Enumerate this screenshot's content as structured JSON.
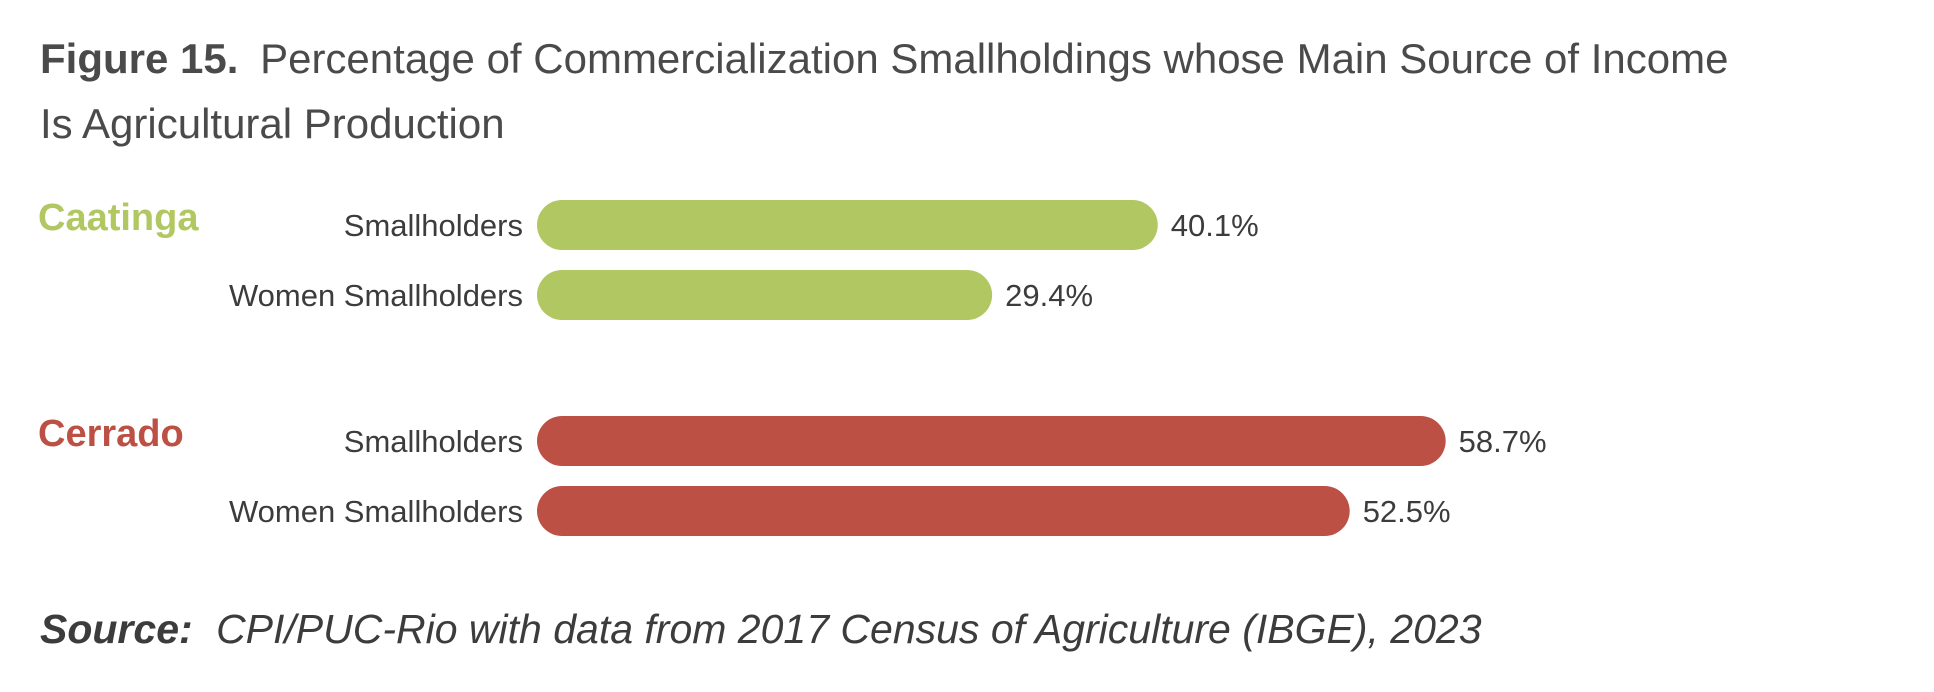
{
  "title": {
    "prefix": "Figure 15.",
    "line1": "Percentage of Commercialization Smallholdings whose Main Source of Income",
    "line2": "Is Agricultural Production"
  },
  "source": {
    "prefix": "Source:",
    "text": "CPI/PUC-Rio with data from 2017 Census of Agriculture (IBGE), 2023"
  },
  "chart_data": {
    "type": "bar",
    "orientation": "horizontal",
    "groups": [
      {
        "name": "Caatinga",
        "color": "#b1c761",
        "bars": [
          {
            "category": "Smallholders",
            "value": 40.1,
            "label": "40.1%"
          },
          {
            "category": "Women Smallholders",
            "value": 29.4,
            "label": "29.4%"
          }
        ]
      },
      {
        "name": "Cerrado",
        "color": "#bd5044",
        "bars": [
          {
            "category": "Smallholders",
            "value": 58.7,
            "label": "58.7%"
          },
          {
            "category": "Women Smallholders",
            "value": 52.5,
            "label": "52.5%"
          }
        ]
      }
    ],
    "xlim": [
      0,
      100
    ],
    "grid": false,
    "legend": "none"
  }
}
